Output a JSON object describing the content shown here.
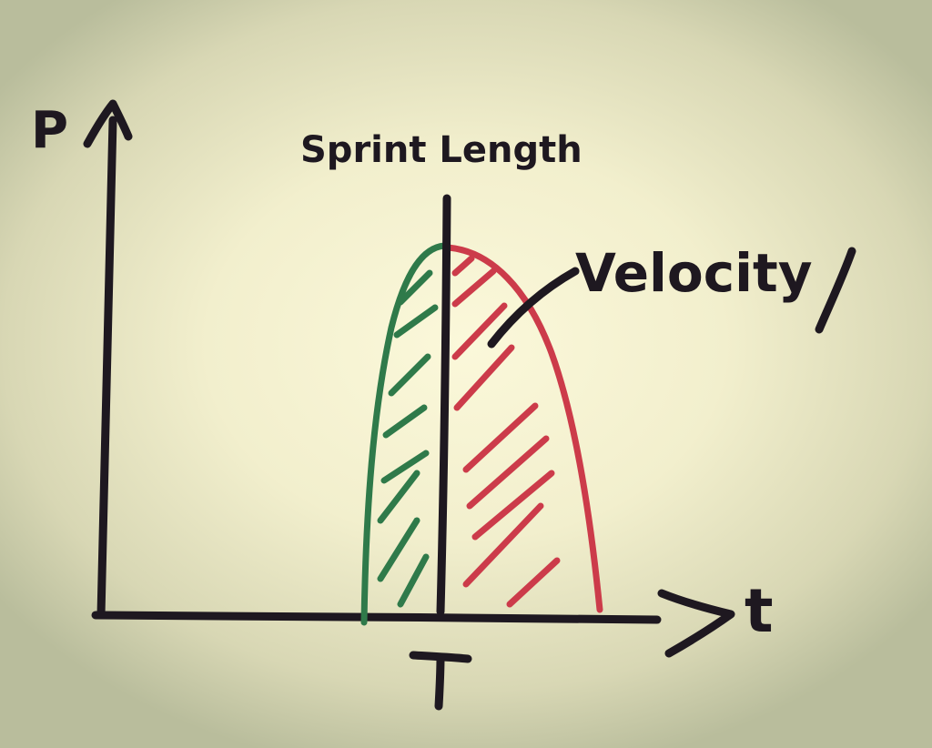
{
  "diagram": {
    "y_axis_label": "P",
    "x_axis_label": "t",
    "marker_label": "T",
    "marker_title": "Sprint Length",
    "curve_label": "Velocity",
    "colors": {
      "ink": "#1e1820",
      "before_marker": "#2f7a4a",
      "after_marker": "#cc3b4a",
      "paper": "#f7f4d6"
    }
  }
}
